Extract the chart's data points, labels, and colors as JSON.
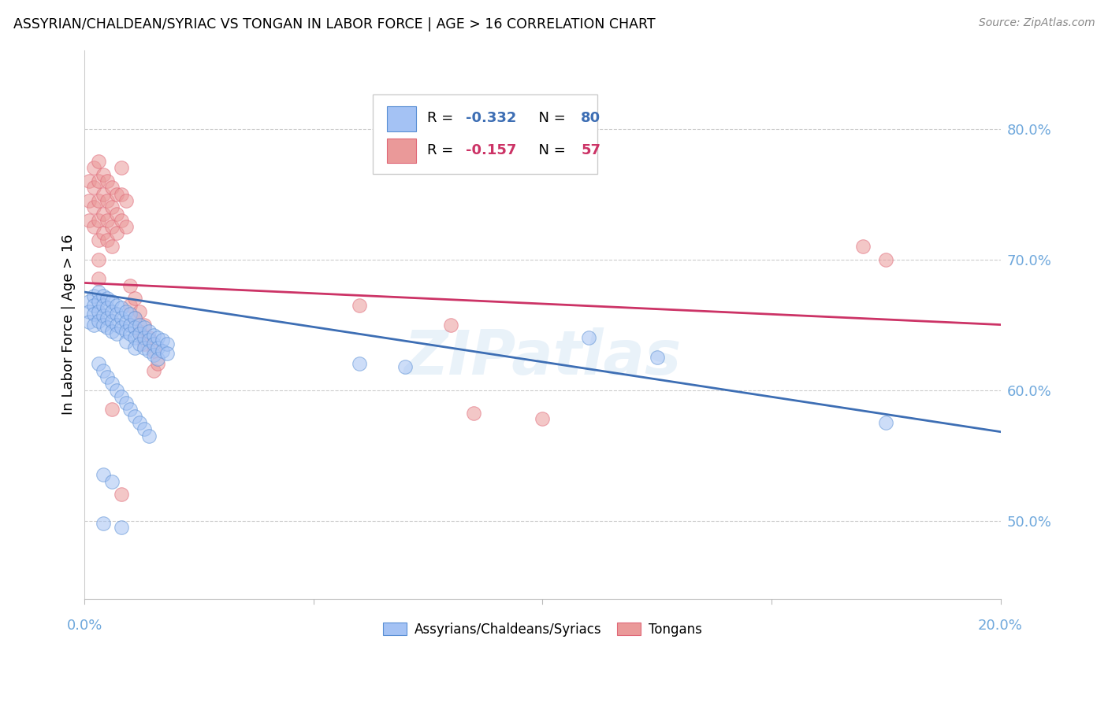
{
  "title": "ASSYRIAN/CHALDEAN/SYRIAC VS TONGAN IN LABOR FORCE | AGE > 16 CORRELATION CHART",
  "source_text": "Source: ZipAtlas.com",
  "ylabel": "In Labor Force | Age > 16",
  "xlim": [
    0.0,
    0.2
  ],
  "ylim": [
    0.44,
    0.86
  ],
  "yticks": [
    0.5,
    0.6,
    0.7,
    0.8
  ],
  "ytick_labels": [
    "50.0%",
    "60.0%",
    "70.0%",
    "80.0%"
  ],
  "xticks": [
    0.0,
    0.05,
    0.1,
    0.15,
    0.2
  ],
  "color_blue": "#a4c2f4",
  "color_pink": "#ea9999",
  "color_line_blue": "#3d6eb4",
  "color_line_pink": "#cc3366",
  "color_axis_label": "#6fa8dc",
  "watermark": "ZIPatlas",
  "blue_scatter": [
    [
      0.001,
      0.668
    ],
    [
      0.001,
      0.66
    ],
    [
      0.001,
      0.652
    ],
    [
      0.002,
      0.672
    ],
    [
      0.002,
      0.665
    ],
    [
      0.002,
      0.658
    ],
    [
      0.002,
      0.65
    ],
    [
      0.003,
      0.675
    ],
    [
      0.003,
      0.668
    ],
    [
      0.003,
      0.66
    ],
    [
      0.003,
      0.653
    ],
    [
      0.004,
      0.672
    ],
    [
      0.004,
      0.665
    ],
    [
      0.004,
      0.657
    ],
    [
      0.004,
      0.65
    ],
    [
      0.005,
      0.67
    ],
    [
      0.005,
      0.663
    ],
    [
      0.005,
      0.655
    ],
    [
      0.005,
      0.648
    ],
    [
      0.006,
      0.668
    ],
    [
      0.006,
      0.66
    ],
    [
      0.006,
      0.653
    ],
    [
      0.006,
      0.645
    ],
    [
      0.007,
      0.665
    ],
    [
      0.007,
      0.658
    ],
    [
      0.007,
      0.65
    ],
    [
      0.007,
      0.643
    ],
    [
      0.008,
      0.663
    ],
    [
      0.008,
      0.655
    ],
    [
      0.008,
      0.648
    ],
    [
      0.009,
      0.66
    ],
    [
      0.009,
      0.652
    ],
    [
      0.009,
      0.645
    ],
    [
      0.009,
      0.637
    ],
    [
      0.01,
      0.658
    ],
    [
      0.01,
      0.65
    ],
    [
      0.01,
      0.643
    ],
    [
      0.011,
      0.655
    ],
    [
      0.011,
      0.648
    ],
    [
      0.011,
      0.64
    ],
    [
      0.011,
      0.632
    ],
    [
      0.012,
      0.65
    ],
    [
      0.012,
      0.643
    ],
    [
      0.012,
      0.635
    ],
    [
      0.013,
      0.648
    ],
    [
      0.013,
      0.64
    ],
    [
      0.013,
      0.632
    ],
    [
      0.014,
      0.645
    ],
    [
      0.014,
      0.638
    ],
    [
      0.014,
      0.63
    ],
    [
      0.015,
      0.642
    ],
    [
      0.015,
      0.635
    ],
    [
      0.015,
      0.627
    ],
    [
      0.016,
      0.64
    ],
    [
      0.016,
      0.632
    ],
    [
      0.016,
      0.624
    ],
    [
      0.017,
      0.638
    ],
    [
      0.017,
      0.63
    ],
    [
      0.018,
      0.635
    ],
    [
      0.018,
      0.628
    ],
    [
      0.003,
      0.62
    ],
    [
      0.004,
      0.615
    ],
    [
      0.005,
      0.61
    ],
    [
      0.006,
      0.605
    ],
    [
      0.007,
      0.6
    ],
    [
      0.008,
      0.595
    ],
    [
      0.009,
      0.59
    ],
    [
      0.01,
      0.585
    ],
    [
      0.011,
      0.58
    ],
    [
      0.012,
      0.575
    ],
    [
      0.013,
      0.57
    ],
    [
      0.014,
      0.565
    ],
    [
      0.004,
      0.535
    ],
    [
      0.006,
      0.53
    ],
    [
      0.004,
      0.498
    ],
    [
      0.008,
      0.495
    ],
    [
      0.11,
      0.64
    ],
    [
      0.125,
      0.625
    ],
    [
      0.06,
      0.62
    ],
    [
      0.07,
      0.618
    ],
    [
      0.175,
      0.575
    ]
  ],
  "pink_scatter": [
    [
      0.001,
      0.76
    ],
    [
      0.001,
      0.745
    ],
    [
      0.001,
      0.73
    ],
    [
      0.002,
      0.77
    ],
    [
      0.002,
      0.755
    ],
    [
      0.002,
      0.74
    ],
    [
      0.002,
      0.725
    ],
    [
      0.003,
      0.775
    ],
    [
      0.003,
      0.76
    ],
    [
      0.003,
      0.745
    ],
    [
      0.003,
      0.73
    ],
    [
      0.003,
      0.715
    ],
    [
      0.003,
      0.7
    ],
    [
      0.003,
      0.685
    ],
    [
      0.004,
      0.765
    ],
    [
      0.004,
      0.75
    ],
    [
      0.004,
      0.735
    ],
    [
      0.004,
      0.72
    ],
    [
      0.005,
      0.76
    ],
    [
      0.005,
      0.745
    ],
    [
      0.005,
      0.73
    ],
    [
      0.005,
      0.715
    ],
    [
      0.006,
      0.755
    ],
    [
      0.006,
      0.74
    ],
    [
      0.006,
      0.725
    ],
    [
      0.006,
      0.71
    ],
    [
      0.007,
      0.75
    ],
    [
      0.007,
      0.735
    ],
    [
      0.007,
      0.72
    ],
    [
      0.008,
      0.77
    ],
    [
      0.008,
      0.75
    ],
    [
      0.008,
      0.73
    ],
    [
      0.009,
      0.745
    ],
    [
      0.009,
      0.725
    ],
    [
      0.01,
      0.68
    ],
    [
      0.01,
      0.665
    ],
    [
      0.011,
      0.67
    ],
    [
      0.011,
      0.655
    ],
    [
      0.012,
      0.66
    ],
    [
      0.012,
      0.645
    ],
    [
      0.013,
      0.65
    ],
    [
      0.013,
      0.635
    ],
    [
      0.014,
      0.64
    ],
    [
      0.015,
      0.63
    ],
    [
      0.015,
      0.615
    ],
    [
      0.016,
      0.62
    ],
    [
      0.006,
      0.585
    ],
    [
      0.008,
      0.52
    ],
    [
      0.06,
      0.665
    ],
    [
      0.08,
      0.65
    ],
    [
      0.085,
      0.582
    ],
    [
      0.1,
      0.578
    ],
    [
      0.17,
      0.71
    ],
    [
      0.175,
      0.7
    ]
  ],
  "blue_trendline_x": [
    0.0,
    0.2
  ],
  "blue_trendline_y": [
    0.675,
    0.568
  ],
  "pink_trendline_x": [
    0.0,
    0.2
  ],
  "pink_trendline_y": [
    0.682,
    0.65
  ]
}
